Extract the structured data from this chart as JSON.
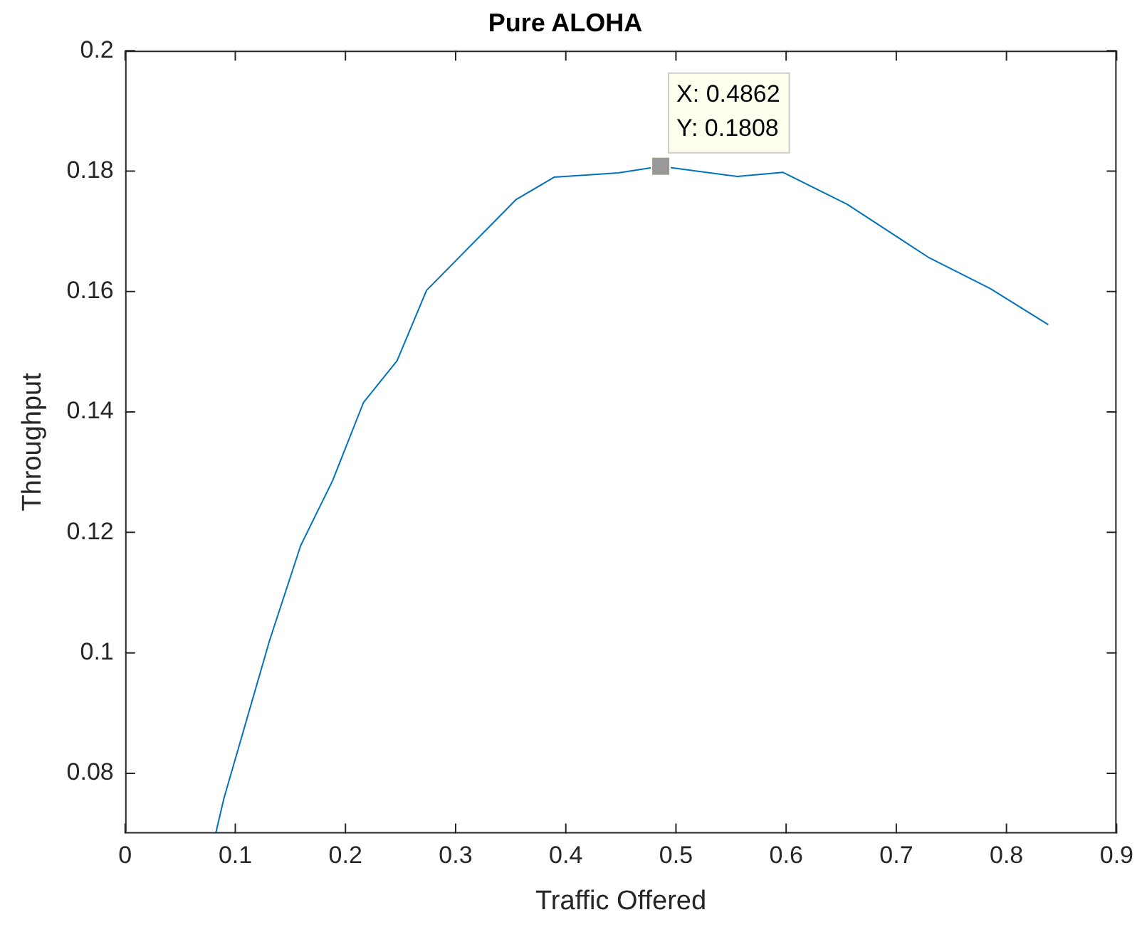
{
  "chart_data": {
    "type": "line",
    "title": "Pure ALOHA",
    "xlabel": "Traffic Offered",
    "ylabel": "Throughput",
    "series": [
      {
        "color": "#0072bd",
        "x": [
          0.0822,
          0.0896,
          0.131,
          0.1593,
          0.1883,
          0.2164,
          0.2468,
          0.2736,
          0.355,
          0.3896,
          0.4476,
          0.4862,
          0.5558,
          0.597,
          0.6554,
          0.729,
          0.7853,
          0.838
        ],
        "values": [
          0.07,
          0.0758,
          0.102,
          0.1178,
          0.1286,
          0.1416,
          0.1485,
          0.1602,
          0.1753,
          0.179,
          0.1797,
          0.1808,
          0.1791,
          0.1798,
          0.1745,
          0.1657,
          0.1605,
          0.1545
        ]
      }
    ],
    "xlim": [
      0,
      0.9
    ],
    "xticks": [
      0,
      0.1,
      0.2,
      0.3,
      0.4,
      0.5,
      0.6,
      0.7,
      0.8,
      0.9
    ],
    "ylim": [
      0.07,
      0.2
    ],
    "yticks": [
      0.08,
      0.1,
      0.12,
      0.14,
      0.16,
      0.18,
      0.2
    ],
    "annotations": [
      {
        "text": "X: 0.4862\nY: 0.1808",
        "x": 0.4862,
        "y": 0.1808
      }
    ],
    "legend": false,
    "marker": "none",
    "line_style": "solid"
  }
}
